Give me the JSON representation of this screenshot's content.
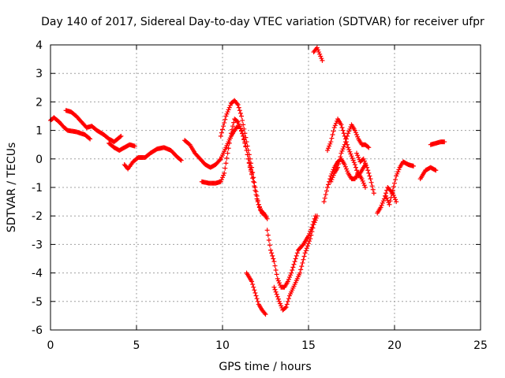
{
  "chart_data": {
    "type": "scatter",
    "title": "Day 140 of 2017, Sidereal Day-to-day VTEC variation (SDTVAR) for receiver ufpr",
    "xlabel": "GPS time / hours",
    "ylabel": "SDTVAR / TECUs",
    "xlim": [
      0,
      25
    ],
    "ylim": [
      -6,
      4
    ],
    "xticks": [
      0,
      5,
      10,
      15,
      20,
      25
    ],
    "yticks": [
      -6,
      -5,
      -4,
      -3,
      -2,
      -1,
      0,
      1,
      2,
      3,
      4
    ],
    "grid": true,
    "marker": "+",
    "color": "#ff0000",
    "series": [
      {
        "name": "SDTVAR",
        "segments": [
          [
            [
              0.0,
              1.35
            ],
            [
              0.2,
              1.45
            ],
            [
              0.5,
              1.3
            ],
            [
              0.8,
              1.1
            ],
            [
              1.0,
              1.0
            ],
            [
              1.5,
              0.95
            ],
            [
              2.0,
              0.85
            ],
            [
              2.3,
              0.7
            ]
          ],
          [
            [
              0.9,
              1.7
            ],
            [
              1.2,
              1.65
            ],
            [
              1.5,
              1.5
            ],
            [
              1.8,
              1.3
            ],
            [
              2.1,
              1.1
            ],
            [
              2.4,
              1.15
            ],
            [
              2.7,
              1.0
            ],
            [
              3.1,
              0.85
            ],
            [
              3.4,
              0.7
            ],
            [
              3.7,
              0.6
            ],
            [
              3.9,
              0.7
            ],
            [
              4.1,
              0.8
            ]
          ],
          [
            [
              3.4,
              0.55
            ],
            [
              3.7,
              0.4
            ],
            [
              4.0,
              0.3
            ],
            [
              4.3,
              0.4
            ],
            [
              4.6,
              0.5
            ],
            [
              4.9,
              0.45
            ]
          ],
          [
            [
              4.3,
              -0.2
            ],
            [
              4.5,
              -0.35
            ],
            [
              4.8,
              -0.1
            ],
            [
              5.1,
              0.05
            ],
            [
              5.5,
              0.05
            ],
            [
              5.8,
              0.2
            ],
            [
              6.2,
              0.35
            ],
            [
              6.6,
              0.4
            ],
            [
              7.0,
              0.3
            ],
            [
              7.4,
              0.05
            ],
            [
              7.6,
              -0.05
            ]
          ],
          [
            [
              7.8,
              0.65
            ],
            [
              8.1,
              0.5
            ],
            [
              8.4,
              0.2
            ],
            [
              8.7,
              0.0
            ],
            [
              9.0,
              -0.2
            ],
            [
              9.3,
              -0.3
            ],
            [
              9.6,
              -0.2
            ],
            [
              9.9,
              0.0
            ],
            [
              10.2,
              0.4
            ],
            [
              10.5,
              0.8
            ],
            [
              10.8,
              1.1
            ],
            [
              11.0,
              1.15
            ],
            [
              11.2,
              0.8
            ],
            [
              11.4,
              0.3
            ],
            [
              11.6,
              -0.3
            ],
            [
              11.8,
              -0.8
            ],
            [
              12.0,
              -1.4
            ],
            [
              12.2,
              -1.8
            ],
            [
              12.4,
              -1.9
            ],
            [
              12.6,
              -2.1
            ]
          ],
          [
            [
              8.8,
              -0.8
            ],
            [
              9.2,
              -0.85
            ],
            [
              9.6,
              -0.85
            ],
            [
              9.9,
              -0.8
            ],
            [
              10.1,
              -0.5
            ],
            [
              10.3,
              0.2
            ],
            [
              10.5,
              0.9
            ],
            [
              10.7,
              1.4
            ],
            [
              10.9,
              1.3
            ],
            [
              11.1,
              1.0
            ],
            [
              11.3,
              0.6
            ],
            [
              11.5,
              0.0
            ],
            [
              11.7,
              -0.5
            ]
          ],
          [
            [
              9.9,
              0.8
            ],
            [
              10.2,
              1.5
            ],
            [
              10.5,
              1.95
            ],
            [
              10.7,
              2.05
            ],
            [
              10.9,
              1.9
            ],
            [
              11.1,
              1.5
            ],
            [
              11.3,
              0.9
            ],
            [
              11.5,
              0.3
            ],
            [
              11.7,
              -0.3
            ],
            [
              11.9,
              -1.0
            ],
            [
              12.1,
              -1.6
            ],
            [
              12.3,
              -1.9
            ],
            [
              12.5,
              -2.0
            ]
          ],
          [
            [
              11.4,
              -4.0
            ],
            [
              11.7,
              -4.3
            ],
            [
              11.9,
              -4.7
            ],
            [
              12.1,
              -5.1
            ],
            [
              12.3,
              -5.3
            ],
            [
              12.5,
              -5.45
            ]
          ],
          [
            [
              12.6,
              -2.5
            ],
            [
              12.8,
              -3.2
            ],
            [
              13.0,
              -3.6
            ],
            [
              13.2,
              -4.2
            ],
            [
              13.4,
              -4.5
            ],
            [
              13.6,
              -4.5
            ],
            [
              13.8,
              -4.3
            ],
            [
              14.0,
              -4.0
            ],
            [
              14.2,
              -3.6
            ],
            [
              14.4,
              -3.2
            ],
            [
              14.7,
              -3.0
            ],
            [
              15.0,
              -2.7
            ],
            [
              15.2,
              -2.4
            ],
            [
              15.4,
              -2.0
            ]
          ],
          [
            [
              13.0,
              -4.5
            ],
            [
              13.3,
              -5.0
            ],
            [
              13.5,
              -5.3
            ],
            [
              13.7,
              -5.2
            ],
            [
              13.9,
              -4.8
            ],
            [
              14.2,
              -4.4
            ],
            [
              14.5,
              -4.0
            ],
            [
              14.8,
              -3.3
            ],
            [
              15.1,
              -2.8
            ],
            [
              15.3,
              -2.3
            ],
            [
              15.5,
              -2.0
            ]
          ],
          [
            [
              15.3,
              3.75
            ],
            [
              15.5,
              3.9
            ],
            [
              15.7,
              3.6
            ],
            [
              15.8,
              3.45
            ]
          ],
          [
            [
              15.9,
              -1.5
            ],
            [
              16.1,
              -1.0
            ],
            [
              16.3,
              -0.6
            ],
            [
              16.5,
              -0.3
            ],
            [
              16.7,
              -0.1
            ],
            [
              16.9,
              0.0
            ],
            [
              17.1,
              -0.2
            ],
            [
              17.3,
              -0.5
            ],
            [
              17.5,
              -0.7
            ],
            [
              17.7,
              -0.7
            ],
            [
              17.9,
              -0.5
            ],
            [
              18.1,
              -0.7
            ],
            [
              18.3,
              -1.0
            ]
          ],
          [
            [
              16.1,
              0.3
            ],
            [
              16.3,
              0.6
            ],
            [
              16.5,
              1.1
            ],
            [
              16.7,
              1.4
            ],
            [
              16.9,
              1.2
            ],
            [
              17.1,
              0.8
            ],
            [
              17.3,
              0.4
            ],
            [
              17.5,
              0.1
            ],
            [
              17.7,
              -0.2
            ],
            [
              17.9,
              -0.6
            ],
            [
              18.1,
              -0.4
            ],
            [
              18.3,
              -0.2
            ]
          ],
          [
            [
              16.3,
              -0.8
            ],
            [
              16.5,
              -0.5
            ],
            [
              16.7,
              -0.3
            ],
            [
              16.9,
              0.2
            ],
            [
              17.1,
              0.5
            ],
            [
              17.3,
              0.9
            ],
            [
              17.5,
              1.2
            ],
            [
              17.7,
              1.0
            ],
            [
              17.9,
              0.7
            ],
            [
              18.1,
              0.5
            ],
            [
              18.3,
              0.5
            ],
            [
              18.5,
              0.4
            ]
          ],
          [
            [
              17.8,
              0.2
            ],
            [
              18.0,
              -0.1
            ],
            [
              18.2,
              0.0
            ],
            [
              18.4,
              -0.3
            ],
            [
              18.6,
              -0.7
            ],
            [
              18.8,
              -1.2
            ]
          ],
          [
            [
              19.0,
              -1.9
            ],
            [
              19.2,
              -1.7
            ],
            [
              19.4,
              -1.4
            ],
            [
              19.6,
              -1.0
            ],
            [
              19.9,
              -1.2
            ],
            [
              20.1,
              -1.5
            ]
          ],
          [
            [
              19.5,
              -1.3
            ],
            [
              19.7,
              -1.6
            ],
            [
              19.9,
              -1.1
            ],
            [
              20.1,
              -0.6
            ],
            [
              20.3,
              -0.3
            ],
            [
              20.5,
              -0.1
            ],
            [
              20.8,
              -0.2
            ],
            [
              21.1,
              -0.25
            ]
          ],
          [
            [
              21.5,
              -0.7
            ],
            [
              21.8,
              -0.4
            ],
            [
              22.1,
              -0.3
            ],
            [
              22.4,
              -0.4
            ]
          ],
          [
            [
              22.1,
              0.5
            ],
            [
              22.4,
              0.55
            ],
            [
              22.7,
              0.6
            ],
            [
              22.9,
              0.6
            ]
          ]
        ]
      }
    ]
  }
}
